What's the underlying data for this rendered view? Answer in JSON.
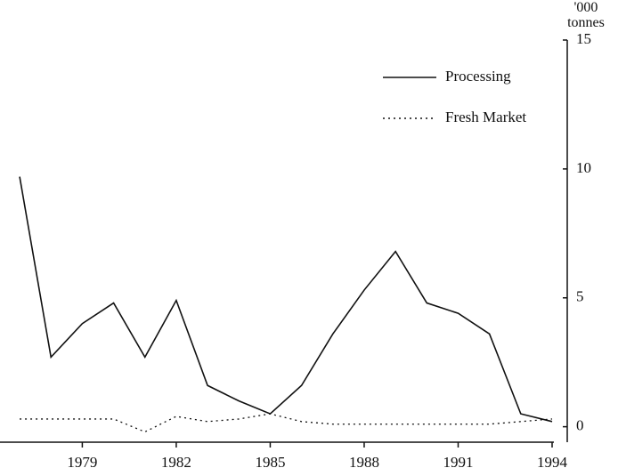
{
  "chart_data": {
    "type": "line",
    "y_label": "'000 tonnes",
    "x": [
      1977,
      1978,
      1979,
      1980,
      1981,
      1982,
      1983,
      1984,
      1985,
      1986,
      1987,
      1988,
      1989,
      1990,
      1991,
      1992,
      1993,
      1994
    ],
    "series": [
      {
        "name": "Processing",
        "color": "#111111",
        "dash": "solid",
        "values": [
          9.7,
          2.7,
          4.0,
          4.8,
          2.7,
          4.9,
          1.6,
          1.0,
          0.5,
          1.6,
          3.6,
          5.3,
          6.8,
          4.8,
          4.4,
          3.6,
          0.5,
          0.2
        ]
      },
      {
        "name": "Fresh Market",
        "color": "#111111",
        "dash": "dotted",
        "values": [
          0.3,
          0.3,
          0.3,
          0.3,
          -0.2,
          0.4,
          0.2,
          0.3,
          0.5,
          0.2,
          0.1,
          0.1,
          0.1,
          0.1,
          0.1,
          0.1,
          0.2,
          0.3
        ]
      }
    ],
    "xlim": [
      1976.6,
      1994
    ],
    "xticks": [
      1979,
      1982,
      1985,
      1988,
      1991,
      1994
    ],
    "ylim": [
      -0.6,
      15
    ],
    "yticks": [
      0,
      5,
      10,
      15
    ],
    "y_axis_side": "right",
    "legend": "upper right",
    "grid": false
  }
}
